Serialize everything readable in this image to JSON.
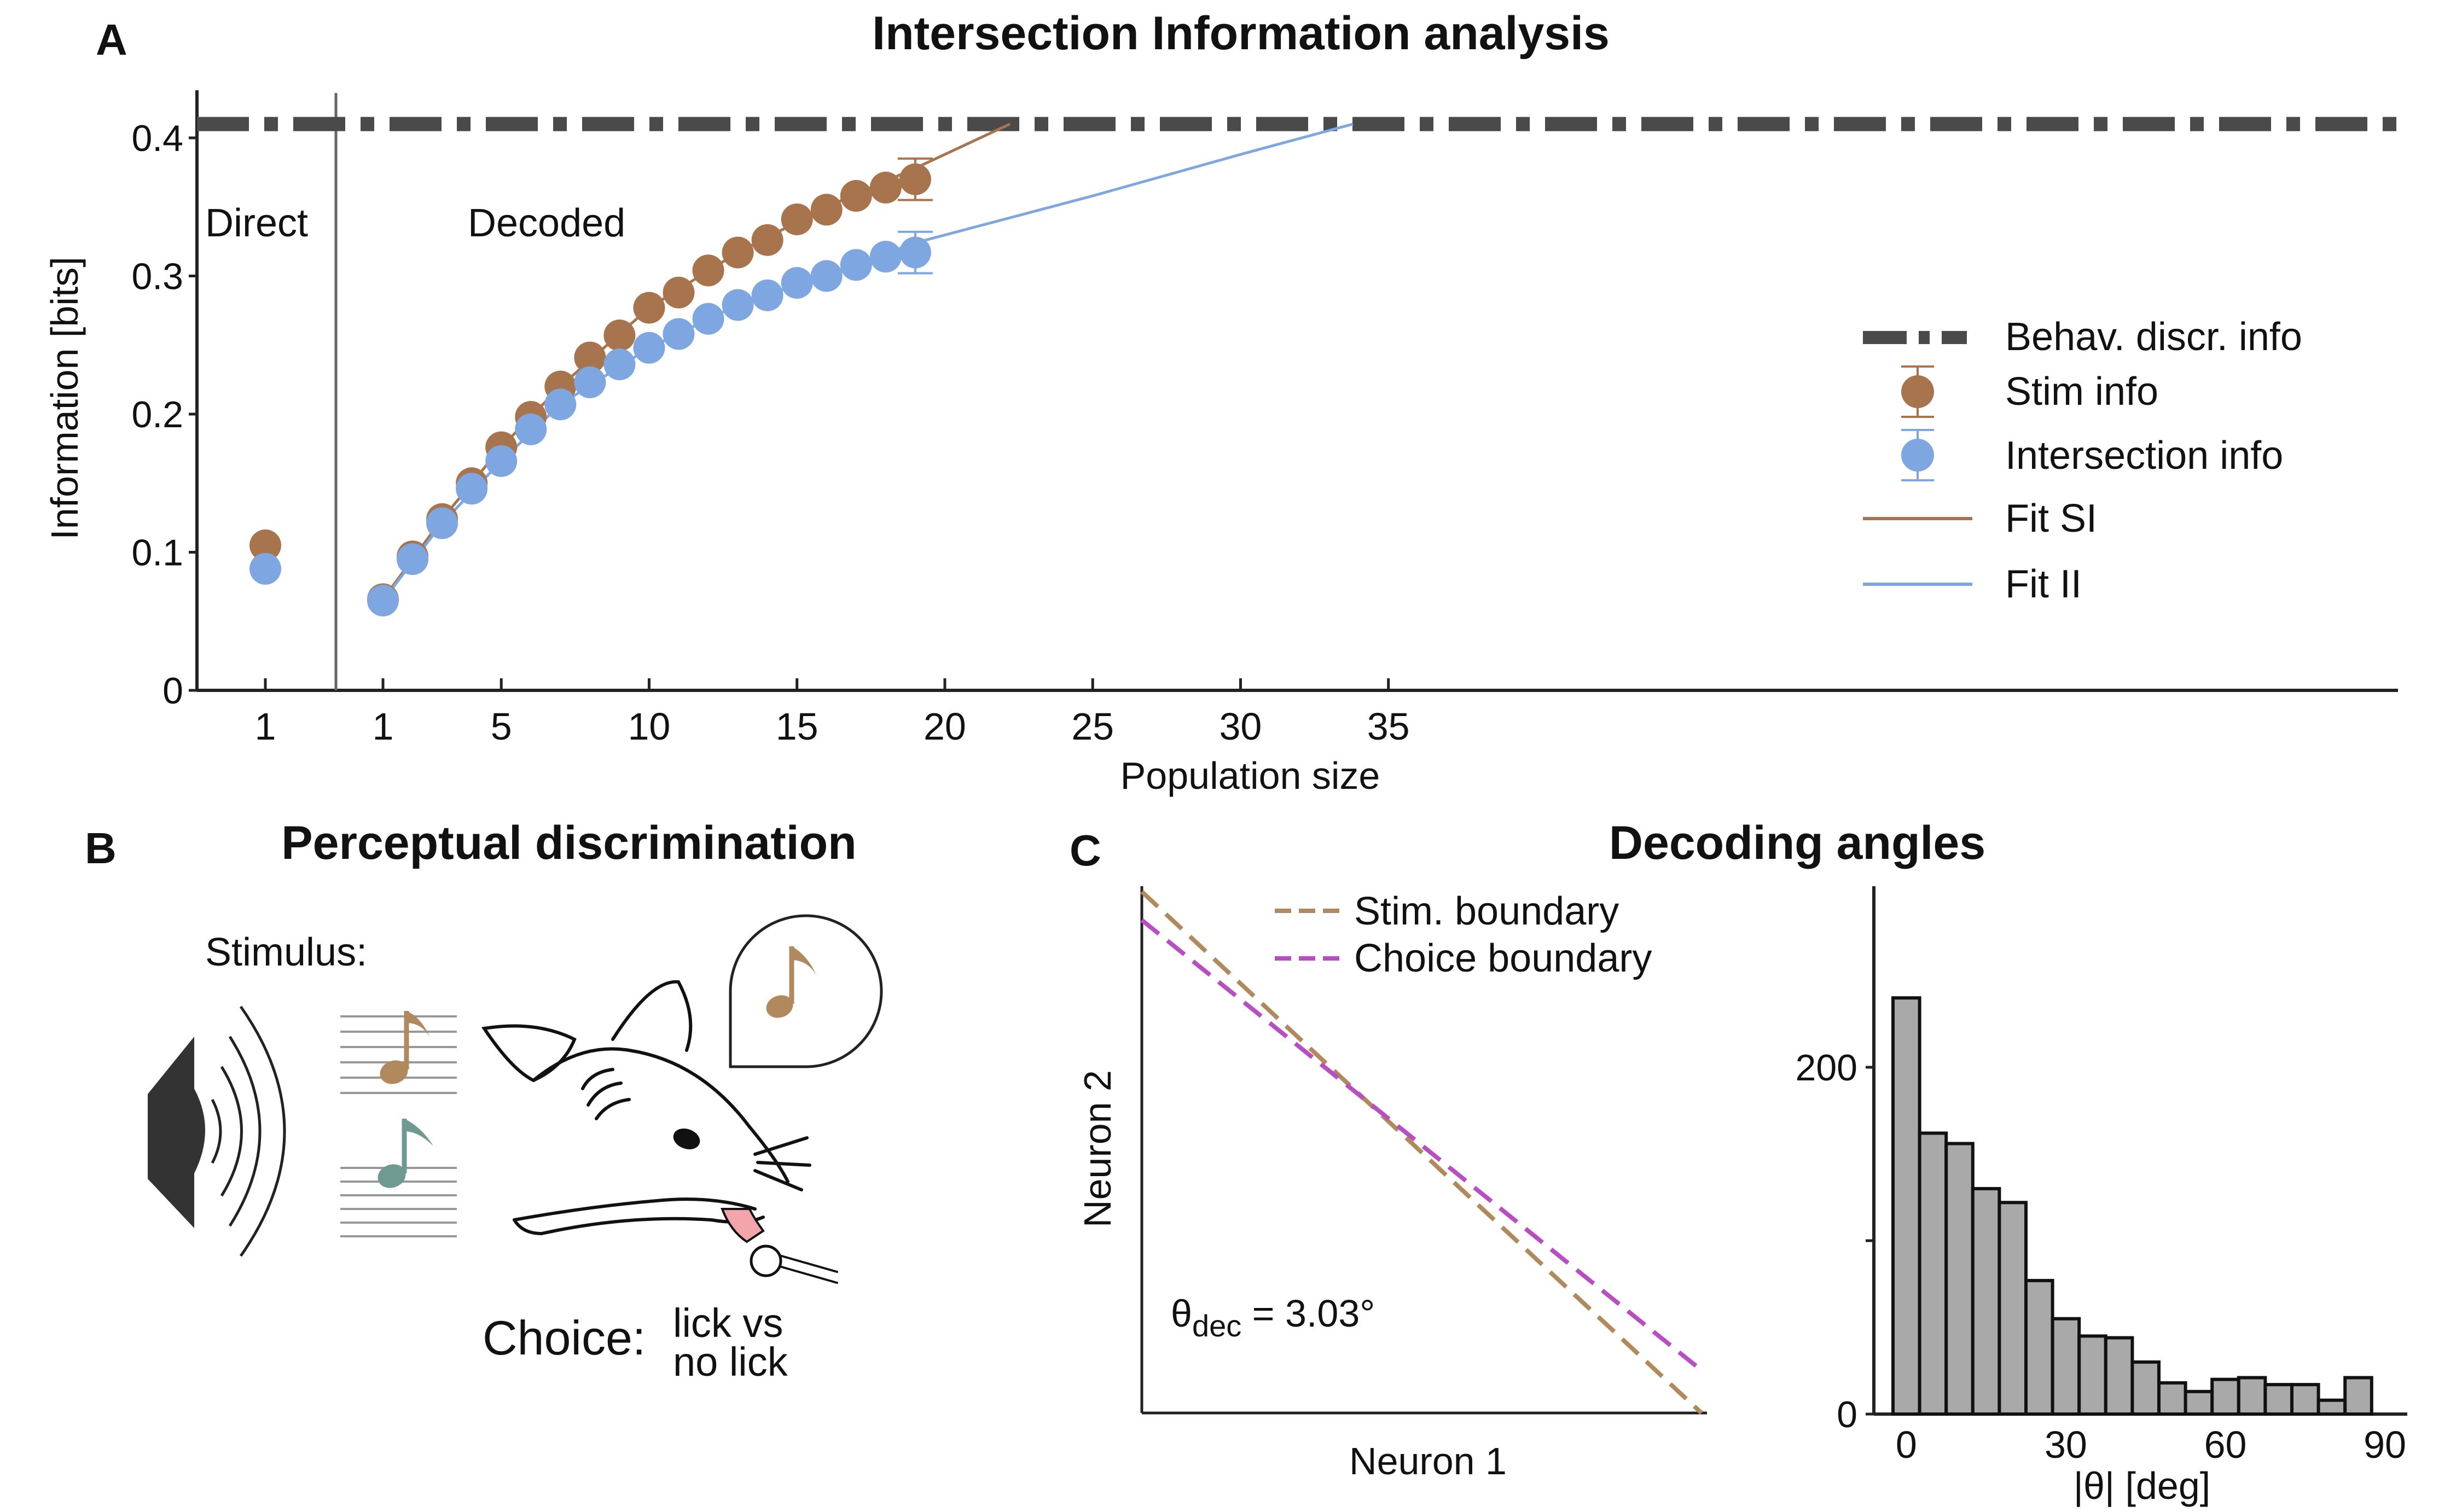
{
  "panels": {
    "a": {
      "letter": "A",
      "title": "Intersection Information analysis"
    },
    "b": {
      "letter": "B",
      "title": "Perceptual discrimination",
      "stimulus_label": "Stimulus:",
      "choice_label": "Choice:",
      "choice_line1": "lick vs",
      "choice_line2": "no lick"
    },
    "c": {
      "letter": "C",
      "title": "Decoding angles"
    }
  },
  "chart_data": [
    {
      "id": "information-vs-population",
      "type": "scatter",
      "xlabel": "Population size",
      "ylabel": "Information [bits]",
      "ylim": [
        0,
        0.42
      ],
      "xlim_decoded": [
        0,
        35
      ],
      "x_ticks": [
        "1",
        "1",
        "5",
        "10",
        "15",
        "20",
        "25",
        "30",
        "35"
      ],
      "y_ticks": [
        "0",
        "0.1",
        "0.2",
        "0.3",
        "0.4"
      ],
      "region_labels": {
        "direct": "Direct",
        "decoded": "Decoded"
      },
      "behav_info": 0.41,
      "colors": {
        "stim": "#a8744d",
        "intersection": "#7ea6e0",
        "behav": "#4a4a4a"
      },
      "direct": {
        "x_label": "1",
        "stim": 0.105,
        "intersection": 0.088
      },
      "decoded_x": [
        1,
        2,
        3,
        4,
        5,
        6,
        7,
        8,
        9,
        10,
        11,
        12,
        13,
        14,
        15,
        16,
        17,
        18,
        19
      ],
      "series": [
        {
          "name": "Stim info",
          "values": [
            0.066,
            0.097,
            0.124,
            0.15,
            0.176,
            0.198,
            0.22,
            0.241,
            0.257,
            0.277,
            0.288,
            0.304,
            0.317,
            0.326,
            0.341,
            0.348,
            0.358,
            0.364,
            0.37
          ],
          "error": [
            0.004,
            0.004,
            0.004,
            0.004,
            0.004,
            0.004,
            0.004,
            0.004,
            0.004,
            0.004,
            0.004,
            0.004,
            0.004,
            0.004,
            0.004,
            0.004,
            0.004,
            0.004,
            0.015
          ]
        },
        {
          "name": "Intersection info",
          "values": [
            0.065,
            0.095,
            0.121,
            0.146,
            0.166,
            0.189,
            0.207,
            0.223,
            0.236,
            0.248,
            0.258,
            0.269,
            0.279,
            0.286,
            0.295,
            0.3,
            0.308,
            0.314,
            0.317
          ],
          "error": [
            0.004,
            0.004,
            0.004,
            0.004,
            0.004,
            0.004,
            0.004,
            0.004,
            0.004,
            0.004,
            0.004,
            0.004,
            0.004,
            0.004,
            0.004,
            0.004,
            0.004,
            0.004,
            0.015
          ]
        }
      ],
      "fits": [
        {
          "name": "Fit SI",
          "x": [
            1,
            3,
            5,
            7,
            10,
            13,
            16,
            19,
            21,
            22.2
          ],
          "y": [
            0.066,
            0.124,
            0.176,
            0.22,
            0.277,
            0.317,
            0.35,
            0.378,
            0.398,
            0.41
          ]
        },
        {
          "name": "Fit II",
          "x": [
            1,
            3,
            5,
            7,
            10,
            13,
            16,
            19,
            25,
            30,
            33.8
          ],
          "y": [
            0.065,
            0.121,
            0.166,
            0.207,
            0.248,
            0.279,
            0.301,
            0.324,
            0.358,
            0.388,
            0.41
          ]
        }
      ],
      "legend": [
        "Behav. discr. info",
        "Stim info",
        "Intersection info",
        "Fit SI",
        "Fit II"
      ],
      "legend_position": "right"
    },
    {
      "id": "decision-boundaries",
      "type": "line",
      "xlabel": "Neuron 1",
      "ylabel": "Neuron 2",
      "series": [
        {
          "name": "Stim. boundary",
          "color": "#b08a5c"
        },
        {
          "name": "Choice boundary",
          "color": "#b84ec2"
        }
      ],
      "annotation_prefix": "θ",
      "annotation_sub": "dec",
      "annotation_value": " = 3.03°"
    },
    {
      "id": "angle-histogram",
      "type": "bar",
      "xlabel": "|θ| [deg]",
      "x_ticks": [
        "0",
        "30",
        "60",
        "90"
      ],
      "y_ticks": [
        "0",
        "200"
      ],
      "xlim": [
        -5,
        95
      ],
      "ylim": [
        0,
        290
      ],
      "bin_width": 5,
      "bin_start": -2.5,
      "values": [
        240,
        162,
        156,
        130,
        122,
        77,
        55,
        45,
        44,
        30,
        18,
        13,
        20,
        21,
        17,
        17,
        8,
        21
      ],
      "color": "#a9a9a9"
    }
  ]
}
